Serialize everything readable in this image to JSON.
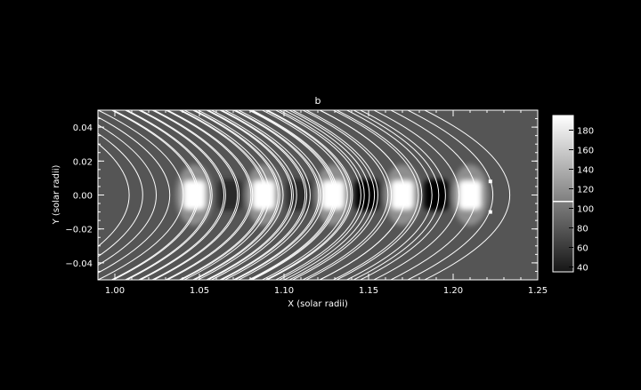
{
  "chart_data": {
    "type": "heatmap",
    "title": "b",
    "xlabel": "X (solar radii)",
    "ylabel": "Y (solar radii)",
    "xlim": [
      0.99,
      1.25
    ],
    "ylim": [
      -0.05,
      0.05
    ],
    "x_ticks": [
      "1.00",
      "1.05",
      "1.10",
      "1.15",
      "1.20",
      "1.25"
    ],
    "x_tick_values": [
      1.0,
      1.05,
      1.1,
      1.15,
      1.2,
      1.25
    ],
    "y_ticks": [
      "0.04",
      "0.02",
      "0.00",
      "−0.02",
      "−0.04"
    ],
    "y_tick_values": [
      0.04,
      0.02,
      0.0,
      -0.02,
      -0.04
    ],
    "colorbar": {
      "range": [
        35,
        195
      ],
      "ticks": [
        "180",
        "160",
        "140",
        "120",
        "100",
        "80",
        "60",
        "40"
      ],
      "tick_values": [
        180,
        160,
        140,
        120,
        100,
        80,
        60,
        40
      ],
      "marker_value": 107
    },
    "blobs": [
      {
        "x": 1.047,
        "y": 0.0,
        "level": 1.0
      },
      {
        "x": 1.068,
        "y": 0.0,
        "level": -0.25
      },
      {
        "x": 1.088,
        "y": 0.0,
        "level": 1.0
      },
      {
        "x": 1.109,
        "y": 0.0,
        "level": -0.25
      },
      {
        "x": 1.129,
        "y": 0.0,
        "level": 1.0
      },
      {
        "x": 1.149,
        "y": 0.0,
        "level": -1.0
      },
      {
        "x": 1.17,
        "y": 0.0,
        "level": 1.0
      },
      {
        "x": 1.19,
        "y": 0.0,
        "level": -1.0
      },
      {
        "x": 1.21,
        "y": 0.0,
        "level": 1.0
      }
    ],
    "field_lines": {
      "offsets": [
        -0.004,
        0.004,
        0.012,
        0.02,
        0.028,
        0.036,
        0.044,
        0.052,
        0.06,
        0.068,
        0.076,
        0.084,
        0.092,
        0.1,
        0.108,
        0.118,
        0.128,
        0.138
      ],
      "lobe_centers": [
        1.048,
        1.089,
        1.131
      ]
    },
    "markers": [
      {
        "x": 1.222,
        "y": 0.008
      },
      {
        "x": 1.222,
        "y": -0.01
      }
    ]
  }
}
